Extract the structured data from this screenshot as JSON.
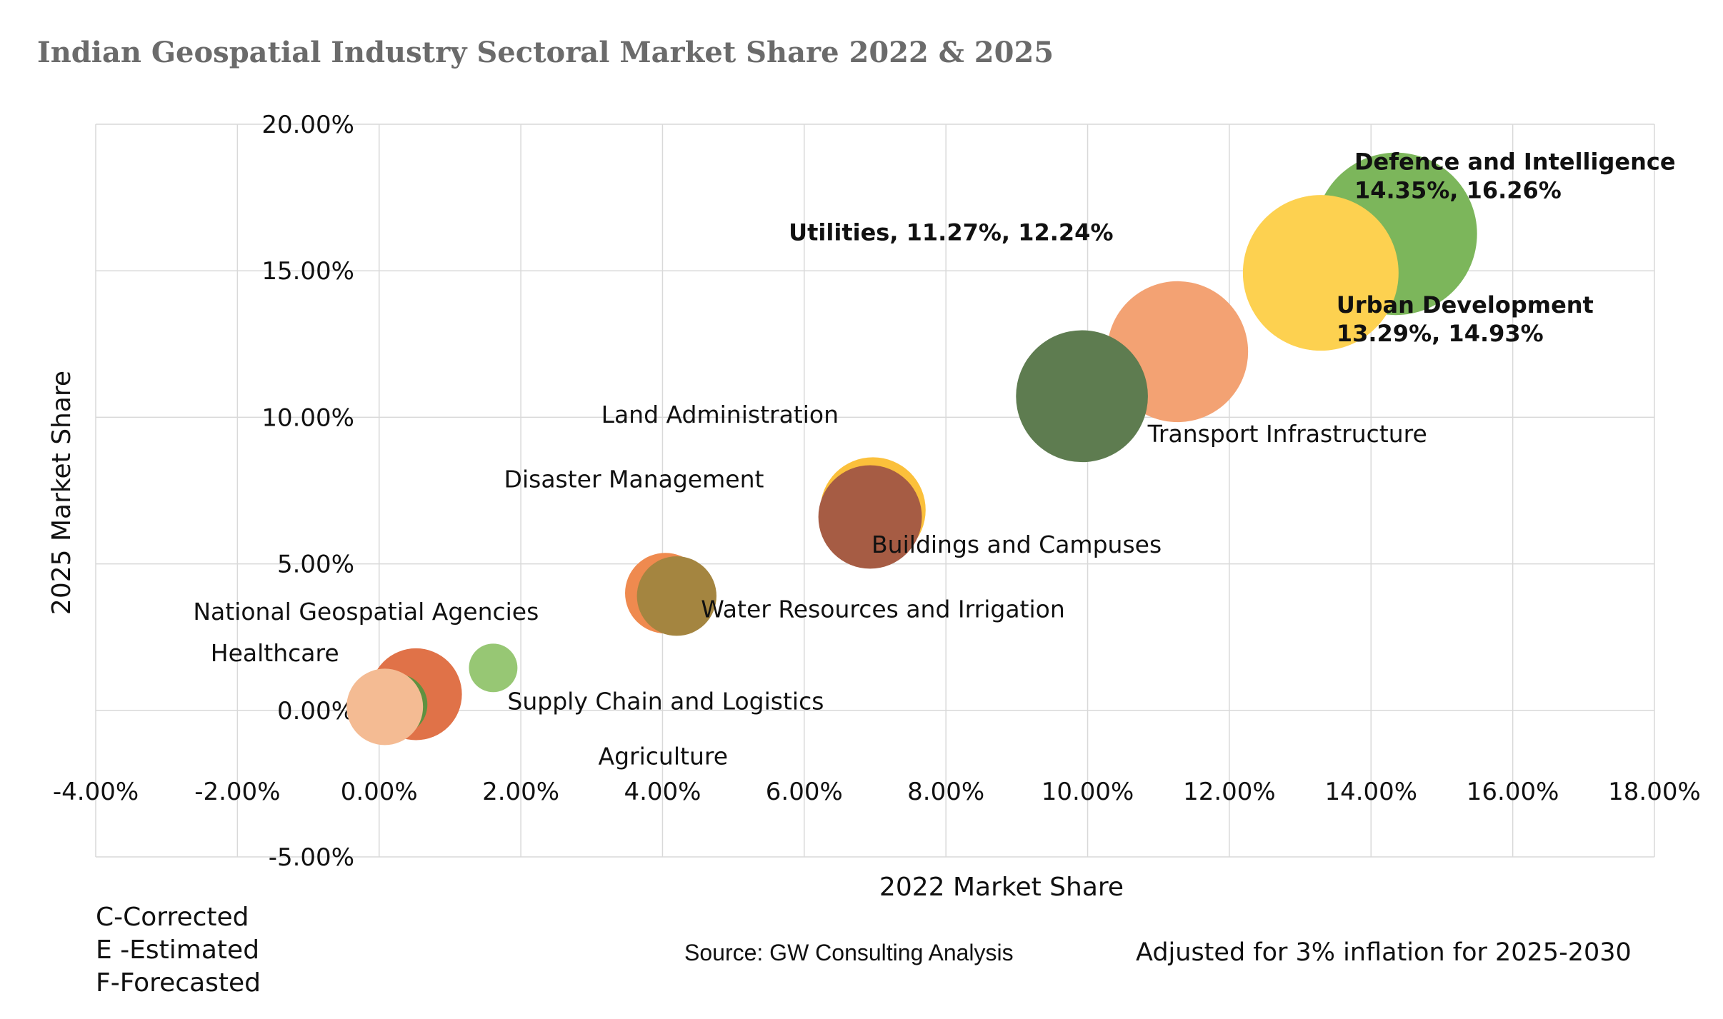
{
  "chart_data": {
    "type": "bubble",
    "title": "Indian Geospatial Industry Sectoral Market Share 2022 & 2025",
    "xlabel": "2022 Market Share",
    "ylabel": "2025 Market Share",
    "xlim": [
      -4,
      18
    ],
    "ylim": [
      -5,
      20
    ],
    "x_ticks": [
      "-4.00%",
      "-2.00%",
      "0.00%",
      "2.00%",
      "4.00%",
      "6.00%",
      "8.00%",
      "10.00%",
      "12.00%",
      "14.00%",
      "16.00%",
      "18.00%"
    ],
    "y_ticks": [
      "-5.00%",
      "0.00%",
      "5.00%",
      "10.00%",
      "15.00%",
      "20.00%"
    ],
    "grid": true,
    "points": [
      {
        "label": "Defence and Intelligence",
        "value_label": "14.35%, 16.26%",
        "x": 14.35,
        "y": 16.26,
        "size": 16.26,
        "color": "#7cb65b",
        "bold": true
      },
      {
        "label": "Urban Development",
        "value_label": "13.29%, 14.93%",
        "x": 13.29,
        "y": 14.93,
        "size": 14.93,
        "color": "#fdd150",
        "bold": true
      },
      {
        "label": "Utilities, 11.27%, 12.24%",
        "value_label": "",
        "x": 11.27,
        "y": 12.24,
        "size": 12.24,
        "color": "#f3a273",
        "bold": true
      },
      {
        "label": "Transport Infrastructure",
        "value_label": "",
        "x": 9.92,
        "y": 10.72,
        "size": 10.72,
        "color": "#5e7c50",
        "bold": false
      },
      {
        "label": "Land Administration",
        "value_label": "",
        "x": 6.97,
        "y": 6.84,
        "size": 6.84,
        "color": "#fbc03b",
        "bold": false
      },
      {
        "label": "Buildings and Campuses",
        "value_label": "",
        "x": 6.93,
        "y": 6.6,
        "size": 6.6,
        "color": "#a65c44",
        "bold": false
      },
      {
        "label": "Disaster Management",
        "value_label": "",
        "x": 4.04,
        "y": 4.0,
        "size": 4.0,
        "color": "#ef8a4f",
        "bold": false
      },
      {
        "label": "Water Resources and Irrigation",
        "value_label": "",
        "x": 4.2,
        "y": 3.9,
        "size": 3.9,
        "color": "#a48540",
        "bold": false
      },
      {
        "label": "Supply Chain and Logistics",
        "value_label": "",
        "x": 1.61,
        "y": 1.45,
        "size": 1.45,
        "color": "#97c774",
        "bold": false
      },
      {
        "label": "National Geospatial Agencies",
        "value_label": "",
        "x": 0.52,
        "y": 0.55,
        "size": 5.2,
        "color": "#e07248",
        "bold": false
      },
      {
        "label": "Agriculture",
        "value_label": "",
        "x": 0.25,
        "y": 0.2,
        "size": 2.3,
        "color": "#5f9140",
        "bold": false
      },
      {
        "label": "Healthcare",
        "value_label": "",
        "x": 0.08,
        "y": 0.12,
        "size": 3.6,
        "color": "#f4bb93",
        "bold": false
      }
    ]
  },
  "notes": {
    "legend": [
      "C-Corrected",
      "E -Estimated",
      "F-Forecasted"
    ],
    "source": "Source: GW Consulting Analysis",
    "inflation": "Adjusted for 3% inflation for 2025-2030"
  }
}
